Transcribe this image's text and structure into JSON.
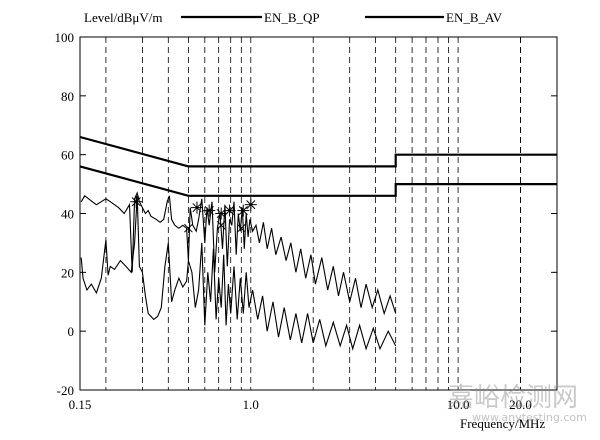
{
  "chart_data": {
    "type": "line",
    "title": "",
    "ylabel": "Level/dBμV/m",
    "xlabel": "Frequency/MHz",
    "x_scale": "log",
    "xlim": [
      0.15,
      30
    ],
    "ylim": [
      -20,
      100
    ],
    "y_ticks": [
      -20,
      0,
      20,
      40,
      60,
      80,
      100
    ],
    "x_tick_labels": [
      {
        "value": 0.15,
        "label": "0.15"
      },
      {
        "value": 1.0,
        "label": "1.0"
      },
      {
        "value": 10.0,
        "label": "10.0"
      },
      {
        "value": 20.0,
        "label": "20.0"
      }
    ],
    "x_minor_gridlines": [
      0.2,
      0.3,
      0.4,
      0.5,
      0.6,
      0.7,
      0.8,
      0.9,
      2,
      3,
      4,
      5,
      6,
      7,
      8,
      9,
      20
    ],
    "grid": true,
    "grid_style": "dashed vertical lines",
    "legend": {
      "placement": "top",
      "entries": [
        "EN_B_QP",
        "EN_B_AV"
      ]
    },
    "series": [
      {
        "name": "EN_B_QP",
        "role": "quasi-peak limit",
        "points": [
          [
            0.15,
            66
          ],
          [
            0.5,
            56
          ],
          [
            5,
            56
          ],
          [
            5,
            60
          ],
          [
            30,
            60
          ]
        ]
      },
      {
        "name": "EN_B_AV",
        "role": "average limit",
        "points": [
          [
            0.15,
            56
          ],
          [
            0.5,
            46
          ],
          [
            5,
            46
          ],
          [
            5,
            50
          ],
          [
            30,
            50
          ]
        ]
      },
      {
        "role": "measured peak trace",
        "points": [
          [
            0.152,
            44
          ],
          [
            0.158,
            46
          ],
          [
            0.165,
            45
          ],
          [
            0.172,
            44
          ],
          [
            0.18,
            43
          ],
          [
            0.19,
            44
          ],
          [
            0.2,
            45
          ],
          [
            0.21,
            44
          ],
          [
            0.22,
            43
          ],
          [
            0.23,
            42
          ],
          [
            0.245,
            40
          ],
          [
            0.26,
            43
          ],
          [
            0.268,
            20
          ],
          [
            0.275,
            45
          ],
          [
            0.283,
            47
          ],
          [
            0.29,
            44
          ],
          [
            0.3,
            42
          ],
          [
            0.31,
            40
          ],
          [
            0.32,
            41
          ],
          [
            0.33,
            39
          ],
          [
            0.35,
            38
          ],
          [
            0.365,
            37
          ],
          [
            0.38,
            38
          ],
          [
            0.395,
            44
          ],
          [
            0.405,
            46
          ],
          [
            0.415,
            38
          ],
          [
            0.43,
            36
          ],
          [
            0.45,
            35
          ],
          [
            0.47,
            36
          ],
          [
            0.49,
            35
          ],
          [
            0.5,
            24
          ],
          [
            0.51,
            42
          ],
          [
            0.525,
            36
          ],
          [
            0.545,
            34
          ],
          [
            0.56,
            38
          ],
          [
            0.58,
            45
          ],
          [
            0.6,
            30
          ],
          [
            0.615,
            42
          ],
          [
            0.63,
            36
          ],
          [
            0.65,
            44
          ],
          [
            0.67,
            20
          ],
          [
            0.69,
            35
          ],
          [
            0.71,
            40
          ],
          [
            0.73,
            28
          ],
          [
            0.75,
            43
          ],
          [
            0.77,
            22
          ],
          [
            0.79,
            38
          ],
          [
            0.81,
            36
          ],
          [
            0.83,
            44
          ],
          [
            0.85,
            26
          ],
          [
            0.87,
            40
          ],
          [
            0.89,
            34
          ],
          [
            0.91,
            42
          ],
          [
            0.93,
            28
          ],
          [
            0.95,
            40
          ],
          [
            0.97,
            32
          ],
          [
            0.99,
            38
          ],
          [
            1.02,
            34
          ],
          [
            1.06,
            36
          ],
          [
            1.1,
            30
          ],
          [
            1.15,
            37
          ],
          [
            1.2,
            28
          ],
          [
            1.26,
            35
          ],
          [
            1.32,
            26
          ],
          [
            1.4,
            32
          ],
          [
            1.48,
            24
          ],
          [
            1.56,
            30
          ],
          [
            1.65,
            20
          ],
          [
            1.74,
            28
          ],
          [
            1.84,
            18
          ],
          [
            1.95,
            26
          ],
          [
            2.05,
            16
          ],
          [
            2.2,
            25
          ],
          [
            2.35,
            14
          ],
          [
            2.5,
            22
          ],
          [
            2.65,
            12
          ],
          [
            2.8,
            20
          ],
          [
            3.0,
            10
          ],
          [
            3.2,
            18
          ],
          [
            3.4,
            8
          ],
          [
            3.6,
            16
          ],
          [
            3.85,
            8
          ],
          [
            4.1,
            14
          ],
          [
            4.4,
            6
          ],
          [
            4.7,
            12
          ],
          [
            5.0,
            6
          ]
        ]
      },
      {
        "role": "measured average trace",
        "points": [
          [
            0.152,
            25
          ],
          [
            0.155,
            18
          ],
          [
            0.162,
            14
          ],
          [
            0.17,
            16
          ],
          [
            0.18,
            13
          ],
          [
            0.19,
            18
          ],
          [
            0.2,
            31
          ],
          [
            0.205,
            19
          ],
          [
            0.21,
            22
          ],
          [
            0.22,
            21
          ],
          [
            0.235,
            24
          ],
          [
            0.25,
            22
          ],
          [
            0.265,
            20
          ],
          [
            0.275,
            30
          ],
          [
            0.283,
            46
          ],
          [
            0.29,
            22
          ],
          [
            0.3,
            20
          ],
          [
            0.31,
            12
          ],
          [
            0.32,
            6
          ],
          [
            0.34,
            4
          ],
          [
            0.355,
            5
          ],
          [
            0.37,
            8
          ],
          [
            0.385,
            22
          ],
          [
            0.4,
            30
          ],
          [
            0.415,
            10
          ],
          [
            0.43,
            14
          ],
          [
            0.45,
            18
          ],
          [
            0.47,
            15
          ],
          [
            0.49,
            17
          ],
          [
            0.5,
            24
          ],
          [
            0.52,
            20
          ],
          [
            0.54,
            8
          ],
          [
            0.56,
            14
          ],
          [
            0.58,
            30
          ],
          [
            0.6,
            2
          ],
          [
            0.62,
            20
          ],
          [
            0.64,
            10
          ],
          [
            0.66,
            28
          ],
          [
            0.68,
            4
          ],
          [
            0.7,
            18
          ],
          [
            0.72,
            8
          ],
          [
            0.74,
            26
          ],
          [
            0.76,
            2
          ],
          [
            0.78,
            16
          ],
          [
            0.8,
            6
          ],
          [
            0.83,
            22
          ],
          [
            0.86,
            4
          ],
          [
            0.89,
            18
          ],
          [
            0.92,
            6
          ],
          [
            0.95,
            20
          ],
          [
            0.98,
            8
          ],
          [
            1.02,
            14
          ],
          [
            1.08,
            4
          ],
          [
            1.14,
            12
          ],
          [
            1.2,
            0
          ],
          [
            1.28,
            10
          ],
          [
            1.36,
            -2
          ],
          [
            1.45,
            8
          ],
          [
            1.55,
            -3
          ],
          [
            1.65,
            6
          ],
          [
            1.76,
            -4
          ],
          [
            1.88,
            6
          ],
          [
            2.0,
            -4
          ],
          [
            2.15,
            4
          ],
          [
            2.3,
            -5
          ],
          [
            2.5,
            3
          ],
          [
            2.7,
            -5
          ],
          [
            2.9,
            2
          ],
          [
            3.1,
            -6
          ],
          [
            3.35,
            2
          ],
          [
            3.6,
            -6
          ],
          [
            3.9,
            1
          ],
          [
            4.2,
            -6
          ],
          [
            4.6,
            0
          ],
          [
            5.0,
            -5
          ]
        ]
      }
    ],
    "markers": [
      {
        "x": 0.28,
        "y": 44,
        "symbol": "*"
      },
      {
        "x": 0.55,
        "y": 42,
        "symbol": "*"
      },
      {
        "x": 0.63,
        "y": 41,
        "symbol": "*"
      },
      {
        "x": 0.72,
        "y": 40,
        "symbol": "*"
      },
      {
        "x": 0.79,
        "y": 41,
        "symbol": "*"
      },
      {
        "x": 0.92,
        "y": 41,
        "symbol": "*"
      },
      {
        "x": 1.0,
        "y": 43,
        "symbol": "*"
      },
      {
        "x": 0.5,
        "y": 35,
        "symbol": "x"
      },
      {
        "x": 0.72,
        "y": 36,
        "symbol": "x"
      },
      {
        "x": 0.9,
        "y": 35,
        "symbol": "x"
      }
    ]
  },
  "watermark": {
    "text": "嘉峪检测网",
    "url": "www.anytesting.com"
  }
}
